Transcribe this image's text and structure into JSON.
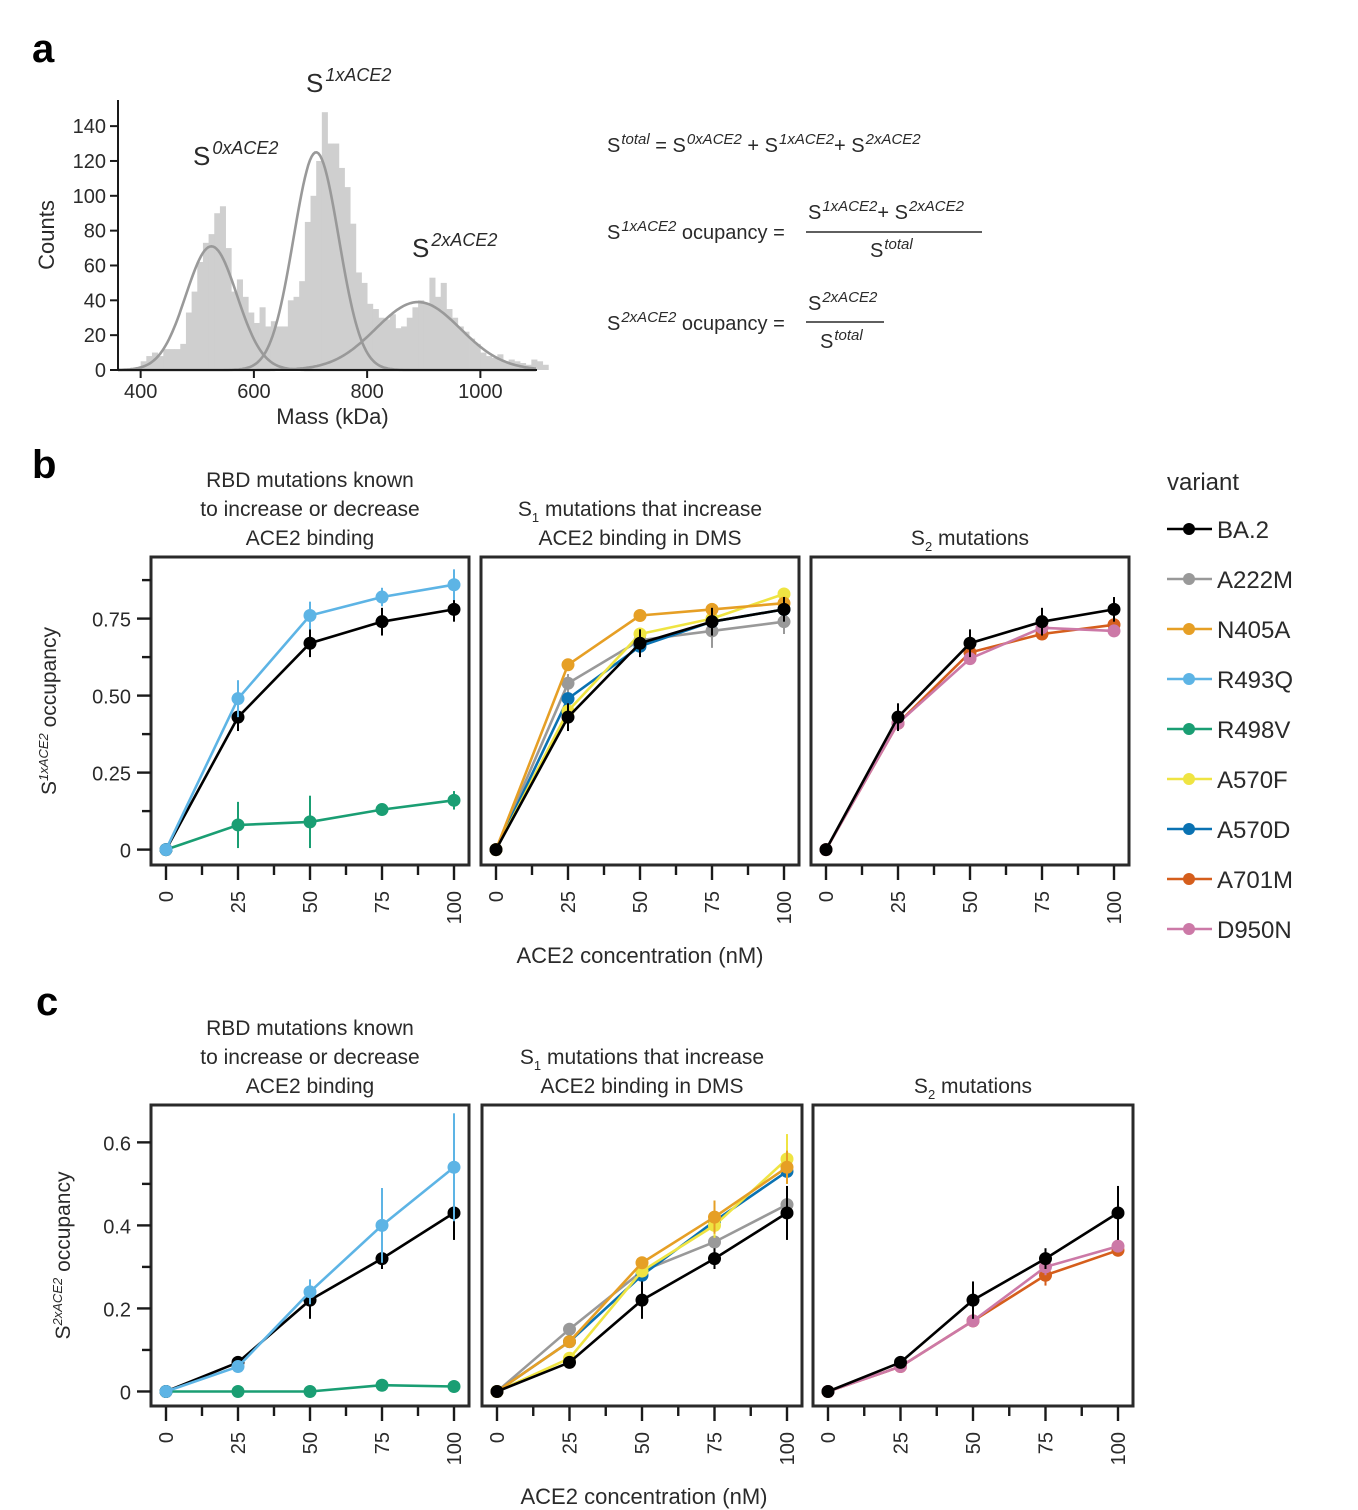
{
  "panel_letters": {
    "a": "a",
    "b": "b",
    "c": "c"
  },
  "equations": {
    "line1": {
      "lhs": "S",
      "lhs_sup": "total",
      "eq": "=",
      "terms": [
        {
          "s": "S",
          "sup": "0xACE2"
        },
        {
          "s": "S",
          "sup": "1xACE2"
        },
        {
          "s": "S",
          "sup": "2xACE2"
        }
      ],
      "plus": "+"
    },
    "line2": {
      "lhs": "S",
      "lhs_sup": "1xACE2",
      "word": "ocupancy",
      "eq": "=",
      "num_terms": [
        {
          "s": "S",
          "sup": "1xACE2"
        },
        {
          "s": "S",
          "sup": "2xACE2"
        }
      ],
      "den": {
        "s": "S",
        "sup": "total"
      },
      "plus": "+"
    },
    "line3": {
      "lhs": "S",
      "lhs_sup": "2xACE2",
      "word": "ocupancy",
      "eq": "=",
      "num": {
        "s": "S",
        "sup": "2xACE2"
      },
      "den": {
        "s": "S",
        "sup": "total"
      }
    }
  },
  "legend": {
    "title": "variant",
    "items": [
      {
        "name": "BA.2",
        "color": "#000000"
      },
      {
        "name": "A222M",
        "color": "#999999"
      },
      {
        "name": "N405A",
        "color": "#E69F25"
      },
      {
        "name": "R493Q",
        "color": "#5DB4E5"
      },
      {
        "name": "R498V",
        "color": "#1A9E73"
      },
      {
        "name": "A570F",
        "color": "#EFE442"
      },
      {
        "name": "A570D",
        "color": "#0A72B2"
      },
      {
        "name": "A701M",
        "color": "#D55E1C"
      },
      {
        "name": "D950N",
        "color": "#CC79A7"
      }
    ]
  },
  "chart_data": [
    {
      "id": "a",
      "type": "histogram",
      "xlabel": "Mass (kDa)",
      "ylabel": "Counts",
      "xlim": [
        360,
        1100
      ],
      "ylim": [
        0,
        155
      ],
      "xticks": [
        400,
        600,
        800,
        1000
      ],
      "yticks": [
        0,
        20,
        40,
        60,
        80,
        100,
        120,
        140
      ],
      "bin_width": 10,
      "bin_start": 400,
      "counts": [
        5,
        8,
        10,
        8,
        12,
        12,
        12,
        15,
        33,
        45,
        62,
        73,
        78,
        90,
        94,
        70,
        45,
        52,
        42,
        33,
        27,
        36,
        25,
        28,
        25,
        25,
        40,
        42,
        51,
        85,
        100,
        120,
        148,
        130,
        130,
        116,
        105,
        84,
        56,
        50,
        38,
        35,
        30,
        29,
        32,
        24,
        25,
        30,
        36,
        40,
        38,
        53,
        42,
        50,
        35,
        30,
        25,
        22,
        18,
        15,
        10,
        8,
        7,
        9,
        5,
        6,
        5,
        4,
        3,
        6,
        5,
        3
      ],
      "fits": [
        {
          "label": "S",
          "label_sup": "0xACE2",
          "mean": 525,
          "amplitude": 71,
          "sigma": 45
        },
        {
          "label": "S",
          "label_sup": "1xACE2",
          "mean": 710,
          "amplitude": 125,
          "sigma": 40
        },
        {
          "label": "S",
          "label_sup": "2xACE2",
          "mean": 890,
          "amplitude": 39,
          "sigma": 75
        }
      ]
    },
    {
      "id": "b",
      "type": "line",
      "ylabel_main": "S",
      "ylabel_sup": "1xACE2",
      "ylabel_rest": " occupancy",
      "xlabel": "ACE2 concentration (nM)",
      "x": [
        0,
        25,
        50,
        75,
        100
      ],
      "xticks": [
        0,
        25,
        50,
        75,
        100
      ],
      "ylim": [
        -0.05,
        0.95
      ],
      "yticks": [
        0,
        0.25,
        0.5,
        0.75
      ],
      "ytick_labels": [
        "0",
        "0.25",
        "0.50",
        "0.75"
      ],
      "yminor": [
        0.125,
        0.375,
        0.625,
        0.875
      ],
      "facets": [
        {
          "title_lines": [
            "RBD mutations known",
            "to increase or decrease",
            "ACE2 binding"
          ],
          "series": [
            {
              "name": "R498V",
              "values": [
                0,
                0.08,
                0.09,
                0.13,
                0.16
              ],
              "err": [
                0,
                0.075,
                0.085,
                0.015,
                0.03
              ]
            },
            {
              "name": "BA.2",
              "values": [
                0,
                0.43,
                0.67,
                0.74,
                0.78
              ],
              "err": [
                0,
                0.045,
                0.045,
                0.045,
                0.04
              ]
            },
            {
              "name": "R493Q",
              "values": [
                0,
                0.49,
                0.76,
                0.82,
                0.86
              ],
              "err": [
                0,
                0.06,
                0.045,
                0.03,
                0.05
              ]
            }
          ]
        },
        {
          "title_lines": [
            "S1 mutations that increase",
            "ACE2 binding in DMS"
          ],
          "title_sub": {
            "line": 0,
            "base": "S",
            "sub": "1",
            "rest": " mutations that increase"
          },
          "series": [
            {
              "name": "A222M",
              "values": [
                0,
                0.54,
                0.68,
                0.71,
                0.74
              ],
              "err": [
                0,
                0.03,
                0.03,
                0.055,
                0.04
              ]
            },
            {
              "name": "A570D",
              "values": [
                0,
                0.49,
                0.66,
                0.74,
                0.78
              ],
              "err": [
                0,
                0.02,
                0.02,
                0.02,
                0.02
              ]
            },
            {
              "name": "A570F",
              "values": [
                0,
                0.45,
                0.7,
                0.75,
                0.83
              ],
              "err": [
                0,
                0.02,
                0.02,
                0.02,
                0.02
              ]
            },
            {
              "name": "N405A",
              "values": [
                0,
                0.6,
                0.76,
                0.78,
                0.8
              ],
              "err": [
                0,
                0.015,
                0.015,
                0.015,
                0.015
              ]
            },
            {
              "name": "BA.2",
              "values": [
                0,
                0.43,
                0.67,
                0.74,
                0.78
              ],
              "err": [
                0,
                0.045,
                0.045,
                0.045,
                0.04
              ]
            }
          ]
        },
        {
          "title_lines": [
            "S2 mutations"
          ],
          "title_sub": {
            "line": 0,
            "base": "S",
            "sub": "2",
            "rest": " mutations"
          },
          "series": [
            {
              "name": "A701M",
              "values": [
                0,
                0.41,
                0.64,
                0.7,
                0.73
              ],
              "err": [
                0,
                0.02,
                0.02,
                0.02,
                0.02
              ]
            },
            {
              "name": "D950N",
              "values": [
                0,
                0.41,
                0.62,
                0.72,
                0.71
              ],
              "err": [
                0,
                0.02,
                0.02,
                0.02,
                0.02
              ]
            },
            {
              "name": "BA.2",
              "values": [
                0,
                0.43,
                0.67,
                0.74,
                0.78
              ],
              "err": [
                0,
                0.045,
                0.045,
                0.045,
                0.04
              ]
            }
          ]
        }
      ]
    },
    {
      "id": "c",
      "type": "line",
      "ylabel_main": "S",
      "ylabel_sup": "2xACE2",
      "ylabel_rest": " occupancy",
      "xlabel": "ACE2 concentration (nM)",
      "x": [
        0,
        25,
        50,
        75,
        100
      ],
      "xticks": [
        0,
        25,
        50,
        75,
        100
      ],
      "ylim": [
        -0.035,
        0.69
      ],
      "yticks": [
        0,
        0.2,
        0.4,
        0.6
      ],
      "ytick_labels": [
        "0",
        "0.2",
        "0.4",
        "0.6"
      ],
      "yminor": [
        0.1,
        0.3,
        0.5
      ],
      "facets": [
        {
          "title_lines": [
            "RBD mutations known",
            "to increase or decrease",
            "ACE2 binding"
          ],
          "series": [
            {
              "name": "R498V",
              "values": [
                0,
                0,
                0,
                0.015,
                0.012
              ],
              "err": [
                0,
                0,
                0,
                0,
                0
              ]
            },
            {
              "name": "BA.2",
              "values": [
                0,
                0.07,
                0.22,
                0.32,
                0.43
              ],
              "err": [
                0,
                0.01,
                0.045,
                0.025,
                0.065
              ]
            },
            {
              "name": "R493Q",
              "values": [
                0,
                0.06,
                0.24,
                0.4,
                0.54
              ],
              "err": [
                0,
                0.01,
                0.03,
                0.09,
                0.13
              ]
            }
          ]
        },
        {
          "title_lines": [
            "S1 mutations that increase",
            "ACE2 binding in DMS"
          ],
          "title_sub": {
            "line": 0,
            "base": "S",
            "sub": "1",
            "rest": " mutations that increase"
          },
          "series": [
            {
              "name": "A222M",
              "values": [
                0,
                0.15,
                0.29,
                0.36,
                0.45
              ],
              "err": [
                0,
                0.015,
                0.015,
                0.015,
                0.015
              ]
            },
            {
              "name": "A570D",
              "values": [
                0,
                0.12,
                0.28,
                0.41,
                0.53
              ],
              "err": [
                0,
                0.015,
                0.015,
                0.015,
                0.015
              ]
            },
            {
              "name": "A570F",
              "values": [
                0,
                0.08,
                0.29,
                0.4,
                0.56
              ],
              "err": [
                0,
                0.01,
                0.015,
                0.03,
                0.06
              ]
            },
            {
              "name": "N405A",
              "values": [
                0,
                0.12,
                0.31,
                0.42,
                0.54
              ],
              "err": [
                0,
                0.01,
                0.015,
                0.04,
                0.04
              ]
            },
            {
              "name": "BA.2",
              "values": [
                0,
                0.07,
                0.22,
                0.32,
                0.43
              ],
              "err": [
                0,
                0.01,
                0.045,
                0.025,
                0.065
              ]
            }
          ]
        },
        {
          "title_lines": [
            "S2 mutations"
          ],
          "title_sub": {
            "line": 0,
            "base": "S",
            "sub": "2",
            "rest": " mutations"
          },
          "series": [
            {
              "name": "A701M",
              "values": [
                0,
                0.06,
                0.17,
                0.28,
                0.34
              ],
              "err": [
                0,
                0.01,
                0.015,
                0.025,
                0.015
              ]
            },
            {
              "name": "D950N",
              "values": [
                0,
                0.06,
                0.17,
                0.3,
                0.35
              ],
              "err": [
                0,
                0.01,
                0.015,
                0.02,
                0.015
              ]
            },
            {
              "name": "BA.2",
              "values": [
                0,
                0.07,
                0.22,
                0.32,
                0.43
              ],
              "err": [
                0,
                0.01,
                0.045,
                0.025,
                0.065
              ]
            }
          ]
        }
      ]
    }
  ]
}
